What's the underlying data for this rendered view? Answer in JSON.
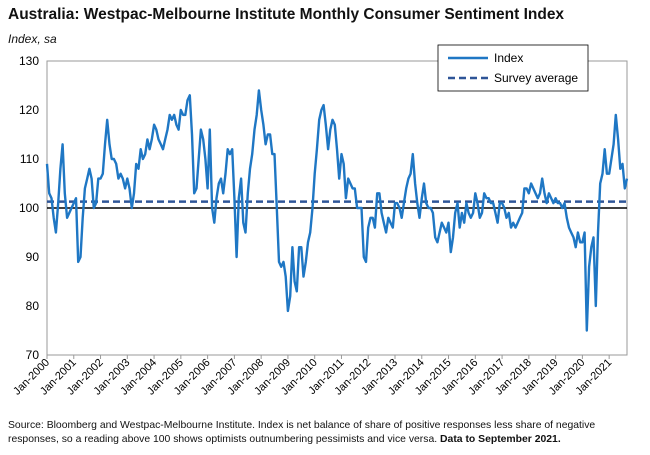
{
  "chart_data": {
    "type": "line",
    "title": "Australia: Westpac-Melbourne Institute Monthly Consumer Sentiment Index",
    "ylabel": "Index, sa",
    "ylim": [
      70,
      130
    ],
    "yticks": [
      70,
      80,
      90,
      100,
      110,
      120,
      130
    ],
    "xlim": [
      "2000-01",
      "2021-09"
    ],
    "xtick_labels": [
      "Jan-2000",
      "Jan-2001",
      "Jan-2002",
      "Jan-2003",
      "Jan-2004",
      "Jan-2005",
      "Jan-2006",
      "Jan-2007",
      "Jan-2008",
      "Jan-2009",
      "Jan-2010",
      "Jan-2011",
      "Jan-2012",
      "Jan-2013",
      "Jan-2014",
      "Jan-2015",
      "Jan-2016",
      "Jan-2017",
      "Jan-2018",
      "Jan-2019",
      "Jan-2020",
      "Jan-2021"
    ],
    "reference_line": 100,
    "legend_position": "top-right",
    "colors": {
      "index": "#1f77c4",
      "average": "#2e5597",
      "zero": "#000000"
    },
    "series": [
      {
        "name": "Index",
        "style": "solid",
        "start": "2000-01",
        "frequency": "monthly",
        "values": [
          109,
          103,
          102,
          98,
          95,
          101,
          108,
          113,
          103,
          98,
          99,
          100,
          101,
          102,
          89,
          90,
          98,
          104,
          106,
          108,
          106,
          100,
          101,
          106,
          106,
          107,
          113,
          118,
          113,
          110,
          110,
          109,
          106,
          107,
          106,
          104,
          106,
          104,
          100,
          103,
          109,
          108,
          112,
          110,
          111,
          114,
          112,
          114,
          117,
          116,
          114,
          113,
          112,
          114,
          116,
          119,
          118,
          119,
          117,
          116,
          120,
          119,
          119,
          122,
          123,
          115,
          103,
          104,
          110,
          116,
          114,
          110,
          104,
          116,
          100,
          97,
          102,
          105,
          106,
          103,
          107,
          112,
          111,
          112,
          102,
          90,
          102,
          106,
          97,
          95,
          103,
          108,
          111,
          116,
          119,
          124,
          120,
          117,
          113,
          115,
          115,
          111,
          111,
          100,
          89,
          88,
          89,
          86,
          79,
          82,
          92,
          85,
          83,
          92,
          92,
          86,
          89,
          93,
          95,
          100,
          107,
          112,
          118,
          120,
          121,
          117,
          112,
          116,
          118,
          117,
          112,
          106,
          111,
          109,
          102,
          106,
          105,
          104,
          104,
          100,
          100,
          100,
          90,
          89,
          96,
          98,
          98,
          96,
          103,
          103,
          99,
          97,
          95,
          98,
          97,
          96,
          101,
          101,
          100,
          98,
          101,
          104,
          106,
          107,
          111,
          105,
          101,
          98,
          102,
          105,
          101,
          100,
          100,
          99,
          94,
          93,
          95,
          97,
          96,
          95,
          97,
          91,
          94,
          99,
          101,
          96,
          99,
          97,
          101,
          99,
          98,
          99,
          103,
          101,
          98,
          99,
          103,
          102,
          102,
          101,
          101,
          99,
          97,
          101,
          101,
          100,
          98,
          99,
          96,
          97,
          96,
          97,
          98,
          99,
          104,
          104,
          103,
          105,
          104,
          103,
          102,
          103,
          106,
          103,
          101,
          103,
          102,
          101,
          102,
          101,
          101,
          100,
          101,
          98,
          96,
          95,
          94,
          92,
          95,
          93,
          93,
          95,
          75,
          88,
          92,
          94,
          80,
          95,
          105,
          107,
          112,
          107,
          107,
          110,
          113,
          119,
          114,
          108,
          109,
          104,
          106
        ]
      },
      {
        "name": "Survey average",
        "style": "dashed",
        "value": 101.3
      }
    ]
  },
  "source": {
    "text": "Source: Bloomberg and Westpac-Melbourne Institute.  Index is net balance of share of positive responses less share of negative responses, so a reading above 100 shows optimists outnumbering pessimists and vice versa.",
    "bold_text": "Data to September 2021."
  }
}
